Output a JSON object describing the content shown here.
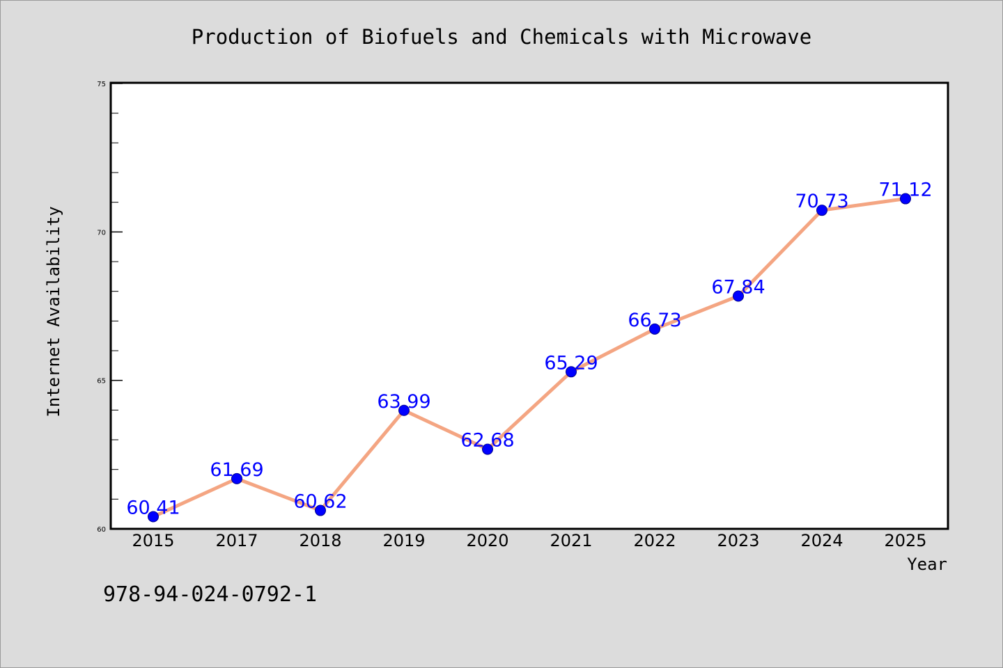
{
  "chart_data": {
    "type": "line",
    "title": "Production of Biofuels and Chemicals with Microwave",
    "xlabel": "Year",
    "ylabel": "Internet Availability",
    "categories": [
      "2015",
      "2017",
      "2018",
      "2019",
      "2020",
      "2021",
      "2022",
      "2023",
      "2024",
      "2025"
    ],
    "values": [
      60.41,
      61.69,
      60.62,
      63.99,
      62.68,
      65.29,
      66.73,
      67.84,
      70.73,
      71.12
    ],
    "data_labels": [
      "60.41",
      "61.69",
      "60.62",
      "63.99",
      "62.68",
      "65.29",
      "66.73",
      "67.84",
      "70.73",
      "71.12"
    ],
    "ylim": [
      60,
      75
    ],
    "yticks": [
      "60",
      "65",
      "70",
      "75"
    ],
    "y_minor_step": 1,
    "grid": false,
    "legend": "none",
    "colors": {
      "line": "#f4a582",
      "marker": "#0000ff",
      "marker_edge": "#00008b",
      "data_label": "#0000ff",
      "background": "#dcdcdc",
      "plot_area": "#ffffff"
    }
  },
  "footer": {
    "isbn": "978-94-024-0792-1"
  }
}
